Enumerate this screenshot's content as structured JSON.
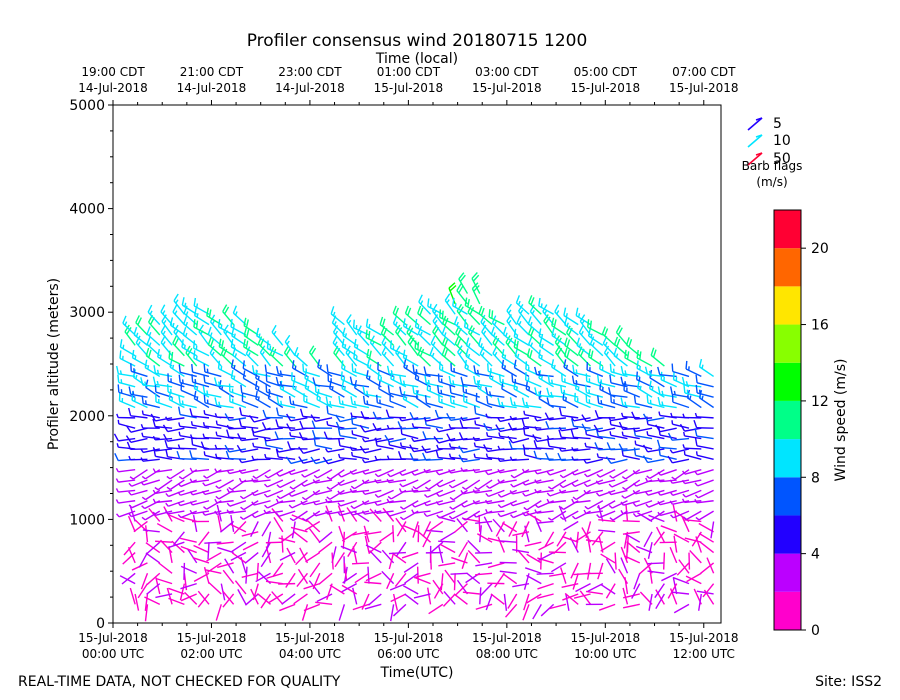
{
  "chart_data": {
    "type": "wind_barb_time_height",
    "title": "Profiler consensus wind 20180715 1200",
    "top_axis_label": "Time (local)",
    "xlabel": "Time(UTC)",
    "ylabel": "Profiler altitude (meters)",
    "ylim": [
      0,
      5000
    ],
    "y_ticks": [
      "0",
      "1000",
      "2000",
      "3000",
      "4000",
      "5000"
    ],
    "y_tick_values": [
      0,
      1000,
      2000,
      3000,
      4000,
      5000
    ],
    "x_range_hours": [
      0,
      12.35
    ],
    "bottom_ticks": [
      {
        "hour": 0,
        "line1": "15-Jul-2018",
        "line2": "00:00 UTC"
      },
      {
        "hour": 2,
        "line1": "15-Jul-2018",
        "line2": "02:00 UTC"
      },
      {
        "hour": 4,
        "line1": "15-Jul-2018",
        "line2": "04:00 UTC"
      },
      {
        "hour": 6,
        "line1": "15-Jul-2018",
        "line2": "06:00 UTC"
      },
      {
        "hour": 8,
        "line1": "15-Jul-2018",
        "line2": "08:00 UTC"
      },
      {
        "hour": 10,
        "line1": "15-Jul-2018",
        "line2": "10:00 UTC"
      },
      {
        "hour": 12,
        "line1": "15-Jul-2018",
        "line2": "12:00 UTC"
      }
    ],
    "top_ticks": [
      {
        "hour": 0,
        "line1": "19:00 CDT",
        "line2": "14-Jul-2018"
      },
      {
        "hour": 2,
        "line1": "21:00 CDT",
        "line2": "14-Jul-2018"
      },
      {
        "hour": 4,
        "line1": "23:00 CDT",
        "line2": "14-Jul-2018"
      },
      {
        "hour": 6,
        "line1": "01:00 CDT",
        "line2": "15-Jul-2018"
      },
      {
        "hour": 8,
        "line1": "03:00 CDT",
        "line2": "15-Jul-2018"
      },
      {
        "hour": 10,
        "line1": "05:00 CDT",
        "line2": "15-Jul-2018"
      },
      {
        "hour": 12,
        "line1": "07:00 CDT",
        "line2": "15-Jul-2018"
      }
    ],
    "colorbar": {
      "label": "Wind speed (m/s)",
      "range": [
        0,
        22
      ],
      "ticks": [
        "0",
        "4",
        "8",
        "12",
        "16",
        "20"
      ],
      "tick_values": [
        0,
        4,
        8,
        12,
        16,
        20
      ],
      "bins": [
        {
          "from": 0,
          "to": 2,
          "color": "#ff00cc"
        },
        {
          "from": 2,
          "to": 4,
          "color": "#bb00ff"
        },
        {
          "from": 4,
          "to": 6,
          "color": "#2200ff"
        },
        {
          "from": 6,
          "to": 8,
          "color": "#0055ff"
        },
        {
          "from": 8,
          "to": 10,
          "color": "#00e5ff"
        },
        {
          "from": 10,
          "to": 12,
          "color": "#00ff88"
        },
        {
          "from": 12,
          "to": 14,
          "color": "#00ff00"
        },
        {
          "from": 14,
          "to": 16,
          "color": "#88ff00"
        },
        {
          "from": 16,
          "to": 18,
          "color": "#ffe600"
        },
        {
          "from": 18,
          "to": 20,
          "color": "#ff6600"
        },
        {
          "from": 20,
          "to": 22,
          "color": "#ff0033"
        }
      ]
    },
    "legend": {
      "placement": "top-right",
      "items": [
        {
          "label": "5",
          "color": "#2200ff"
        },
        {
          "label": "10",
          "color": "#00e5ff"
        },
        {
          "label": "50",
          "color": "#ff0033"
        }
      ],
      "caption_line1": "Barb flags",
      "caption_line2": "(m/s)"
    },
    "barb_layers": [
      {
        "from_m": 150,
        "to_m": 1000,
        "speed_ms": [
          1,
          2.5
        ],
        "dir": "mixed"
      },
      {
        "from_m": 1000,
        "to_m": 1500,
        "speed_ms": [
          2.5,
          4
        ],
        "dir": "west-southwest"
      },
      {
        "from_m": 1500,
        "to_m": 2050,
        "speed_ms": [
          4,
          6.5
        ],
        "dir": "west"
      },
      {
        "from_m": 2050,
        "to_m": 2400,
        "speed_ms": [
          7,
          9
        ],
        "dir": "west-northwest"
      },
      {
        "from_m": 2400,
        "to_m": 3000,
        "speed_ms": [
          8.5,
          11
        ],
        "dir": "northwest"
      },
      {
        "from_m": 3000,
        "to_m": 3450,
        "speed_ms": [
          11,
          13.5
        ],
        "dir": "north-northwest"
      }
    ]
  },
  "footer": {
    "left_note": "REAL-TIME DATA, NOT CHECKED FOR QUALITY",
    "site": "Site: ISS2"
  }
}
